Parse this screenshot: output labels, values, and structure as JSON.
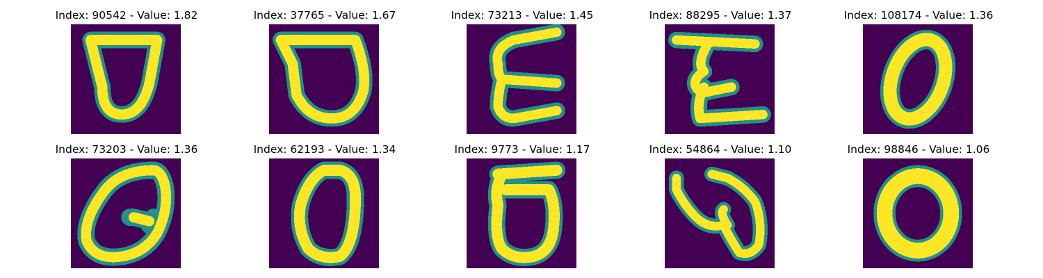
{
  "palette": {
    "background": "#440154",
    "teal": "#21918c",
    "green": "#5ec962",
    "yellow": "#fde725"
  },
  "tiles": [
    {
      "title": "Index: 90542 - Value: 1.82",
      "digit_shape": "rounded shield / U loop"
    },
    {
      "title": "Index: 37765 - Value: 1.67",
      "digit_shape": "rounded shield / U loop"
    },
    {
      "title": "Index: 73213 - Value: 1.45",
      "digit_shape": "sigma / E-like stroke"
    },
    {
      "title": "Index: 88295 - Value: 1.37",
      "digit_shape": "sigma / E-like stroke"
    },
    {
      "title": "Index: 108174 - Value: 1.36",
      "digit_shape": "slanted zero"
    },
    {
      "title": "Index: 73203 - Value: 1.36",
      "digit_shape": "tilted loop with inner hook"
    },
    {
      "title": "Index: 62193 - Value: 1.34",
      "digit_shape": "oval zero"
    },
    {
      "title": "Index: 9773 - Value: 1.17",
      "digit_shape": "flat-top loop"
    },
    {
      "title": "Index: 54864 - Value: 1.10",
      "digit_shape": "hooked heart-like stroke"
    },
    {
      "title": "Index: 98846 - Value: 1.06",
      "digit_shape": "round zero"
    }
  ]
}
